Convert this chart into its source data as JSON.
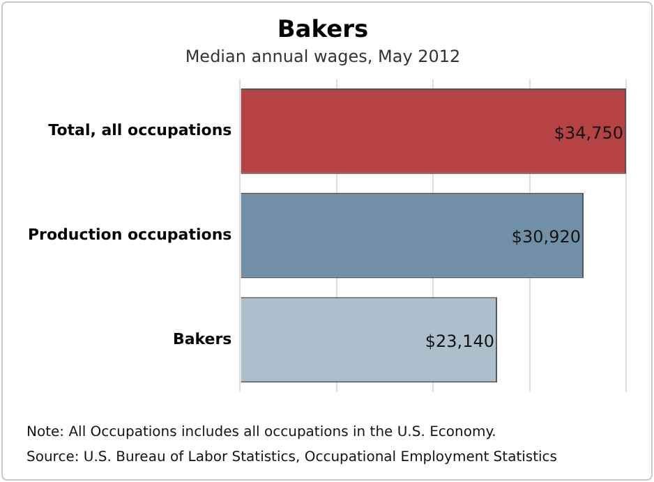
{
  "chart_data": {
    "type": "bar",
    "orientation": "horizontal",
    "title": "Bakers",
    "subtitle": "Median annual wages, May 2012",
    "categories": [
      "Total, all occupations",
      "Production occupations",
      "Bakers"
    ],
    "values": [
      34750,
      30920,
      23140
    ],
    "colors": [
      "#b54343",
      "#7090a8",
      "#adbfca"
    ],
    "value_labels": [
      "$34,750",
      "$30,920",
      "$23,140"
    ],
    "xlim": [
      0,
      34750
    ],
    "xticks": [
      {
        "value": 0,
        "label": null
      },
      {
        "value": 8687.5,
        "label": null
      },
      {
        "value": 17375,
        "label": null
      },
      {
        "value": 26062.5,
        "label": null
      },
      {
        "value": 34750,
        "label": null
      }
    ],
    "tick_labels": "y",
    "grid": "x",
    "legend": false,
    "annotations": [
      "Note: All Occupations includes all occupations in the U.S. Economy.",
      "Source: U.S. Bureau of Labor Statistics, Occupational Employment Statistics"
    ]
  }
}
